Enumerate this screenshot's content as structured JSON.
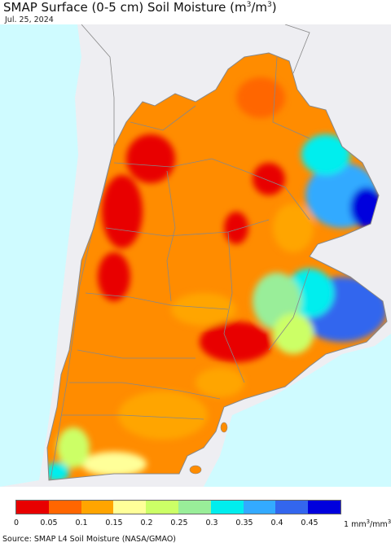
{
  "title": {
    "text": "SMAP Surface (0-5 cm) Soil Moisture (m",
    "sup1": "3",
    "mid": "/m",
    "sup2": "3",
    "end": ")"
  },
  "date": "Jul. 25, 2024",
  "legend": {
    "colors": [
      "#e80000",
      "#ff6600",
      "#ffa500",
      "#ffff99",
      "#ccff66",
      "#99ee99",
      "#00eeee",
      "#33aaff",
      "#3366ee",
      "#0000dd"
    ],
    "ticks": [
      "0",
      "0.05",
      "0.1",
      "0.15",
      "0.2",
      "0.25",
      "0.3",
      "0.35",
      "0.4",
      "0.45"
    ],
    "unit_prefix": "1 mm",
    "unit_sup1": "3",
    "unit_mid": "/mm",
    "unit_sup2": "3"
  },
  "source": "Source: SMAP L4 Soil Moisture (NASA/GMAO)",
  "map_colors": {
    "ocean": "#cffbff",
    "land_outside": "#eeeef2",
    "border": "#888888"
  }
}
